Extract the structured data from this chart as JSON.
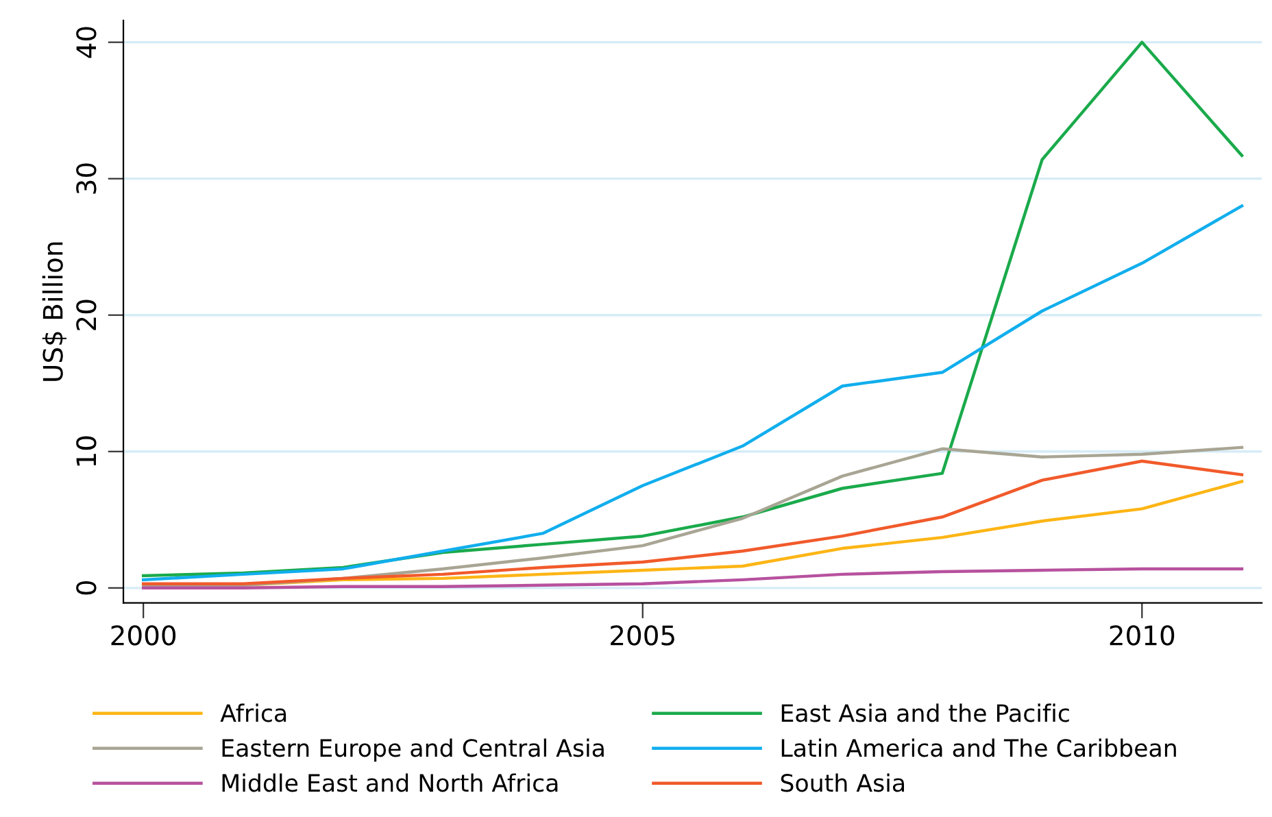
{
  "chart_data": {
    "type": "line",
    "ylabel": "US$ Billion",
    "x": [
      2000,
      2001,
      2002,
      2003,
      2004,
      2005,
      2006,
      2007,
      2008,
      2009,
      2010,
      2011
    ],
    "series": [
      {
        "name": "Africa",
        "color": "#fdb515",
        "values": [
          0.1,
          0.2,
          0.6,
          0.7,
          1.0,
          1.3,
          1.6,
          2.9,
          3.7,
          4.9,
          5.8,
          7.8
        ]
      },
      {
        "name": "East Asia and the Pacific",
        "color": "#1aaa4b",
        "values": [
          0.9,
          1.1,
          1.5,
          2.6,
          3.2,
          3.8,
          5.2,
          7.3,
          8.4,
          31.4,
          40.0,
          31.7
        ]
      },
      {
        "name": "Eastern Europe and Central Asia",
        "color": "#a8a594",
        "values": [
          0.2,
          0.2,
          0.7,
          1.4,
          2.2,
          3.1,
          5.1,
          8.2,
          10.2,
          9.6,
          9.8,
          10.3
        ]
      },
      {
        "name": "Latin America and The Caribbean",
        "color": "#11aeed",
        "values": [
          0.6,
          1.0,
          1.4,
          2.7,
          4.0,
          7.5,
          10.4,
          14.8,
          15.8,
          20.3,
          23.8,
          28.0
        ]
      },
      {
        "name": "Middle East and North Africa",
        "color": "#b7519e",
        "values": [
          0.0,
          0.0,
          0.1,
          0.1,
          0.2,
          0.3,
          0.6,
          1.0,
          1.2,
          1.3,
          1.4,
          1.4
        ]
      },
      {
        "name": "South Asia",
        "color": "#f15a2b",
        "values": [
          0.3,
          0.3,
          0.7,
          1.0,
          1.5,
          1.9,
          2.7,
          3.8,
          5.2,
          7.9,
          9.3,
          8.3
        ]
      }
    ],
    "xlim": [
      1999.8,
      2011.2
    ],
    "xticks": [
      2000,
      2005,
      2010
    ],
    "ylim": [
      -1.1,
      41.6
    ],
    "yticks": [
      0,
      10,
      20,
      30,
      40
    ],
    "grid": "y",
    "legend": "bottom",
    "marker": "none",
    "line_style": "solid"
  }
}
